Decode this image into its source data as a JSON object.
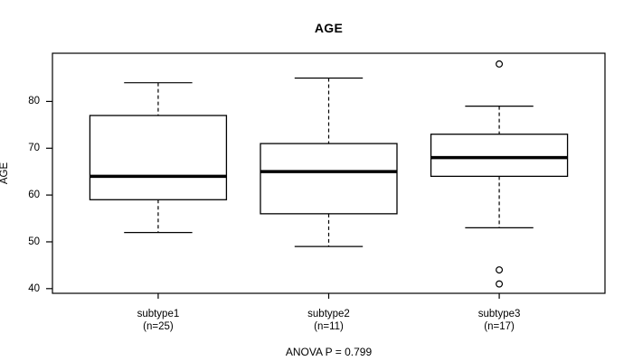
{
  "chart_data": {
    "type": "boxplot",
    "title": "AGE",
    "ylabel": "AGE",
    "xlabel": "",
    "annotation": "ANOVA P = 0.799",
    "ylim": [
      39.0,
      90.3
    ],
    "yticks": [
      40,
      50,
      60,
      70,
      80
    ],
    "grid": false,
    "legend": null,
    "groups": [
      {
        "label": "subtype1",
        "sublabel": "(n=25)",
        "n": 25,
        "whisker_low": 52,
        "q1": 59,
        "median": 64,
        "q3": 77,
        "whisker_high": 84,
        "outliers": []
      },
      {
        "label": "subtype2",
        "sublabel": "(n=11)",
        "n": 11,
        "whisker_low": 49,
        "q1": 56,
        "median": 65,
        "q3": 71,
        "whisker_high": 85,
        "outliers": []
      },
      {
        "label": "subtype3",
        "sublabel": "(n=17)",
        "n": 17,
        "whisker_low": 53,
        "q1": 64,
        "median": 68,
        "q3": 73,
        "whisker_high": 79,
        "outliers": [
          88,
          44,
          41
        ]
      }
    ],
    "colors": {
      "line": "#000000",
      "box_fill": "#ffffff",
      "background": "#ffffff"
    }
  }
}
